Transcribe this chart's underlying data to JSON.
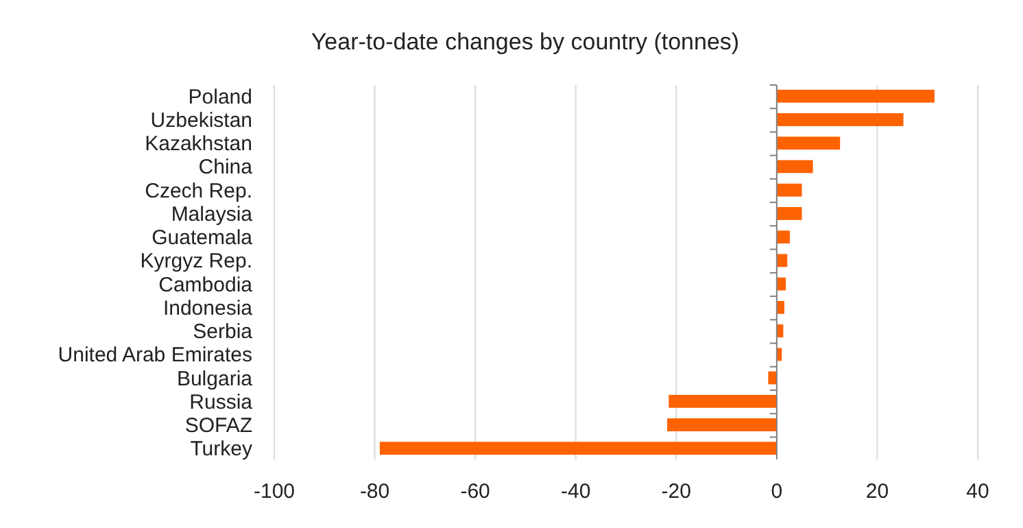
{
  "chart_data": {
    "type": "bar",
    "title": "Year-to-date changes by country (tonnes)",
    "orientation": "horizontal",
    "categories": [
      "Poland",
      "Uzbekistan",
      "Kazakhstan",
      "China",
      "Czech Rep.",
      "Malaysia",
      "Guatemala",
      "Kyrgyz Rep.",
      "Cambodia",
      "Indonesia",
      "Serbia",
      "United Arab Emirates",
      "Bulgaria",
      "Russia",
      "SOFAZ",
      "Turkey"
    ],
    "values": [
      31.4,
      25.2,
      12.6,
      7.2,
      5.0,
      5.0,
      2.6,
      2.1,
      1.8,
      1.5,
      1.3,
      1.0,
      -1.7,
      -21.5,
      -21.8,
      -79.0
    ],
    "color": "#ff6200",
    "xlim": [
      -100,
      40
    ],
    "xticks": [
      -100,
      -80,
      -60,
      -40,
      -20,
      0,
      20,
      40
    ],
    "grid": "x"
  }
}
